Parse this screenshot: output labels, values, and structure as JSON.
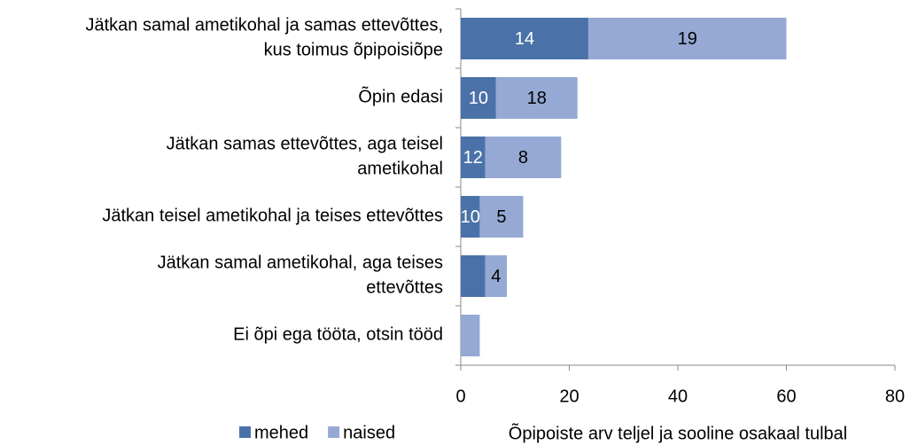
{
  "chart_data": {
    "type": "stacked-bar-horizontal",
    "x_label": "Õpipoiste arv teljel ja sooline osakaal tulbal",
    "categories": [
      "Jätkan samal ametikohal ja samas ettevõttes,\nkus toimus õpipoisiõpe",
      "Õpin edasi",
      "Jätkan samas ettevõttes, aga teisel\nametikohal",
      "Jätkan teisel ametikohal ja teises ettevõttes",
      "Jätkan samal ametikohal, aga teises\nettevõttes",
      "Ei õpi ega tööta, otsin tööd"
    ],
    "series": [
      {
        "name": "mehed",
        "color": "#4a72a8",
        "label_color": "#ffffff",
        "values": [
          23.5,
          6.5,
          4.5,
          3.5,
          4.5,
          0
        ],
        "shares": [
          14,
          10,
          12,
          10,
          null,
          null
        ]
      },
      {
        "name": "naised",
        "color": "#95a9d4",
        "label_color": "#000000",
        "values": [
          36.5,
          15,
          14,
          8,
          4,
          3.5
        ],
        "shares": [
          19,
          18,
          8,
          5,
          4,
          null
        ]
      }
    ],
    "xlim": [
      0,
      80
    ],
    "xticks": [
      0,
      20,
      40,
      60,
      80
    ],
    "legend": "bottom-left"
  }
}
